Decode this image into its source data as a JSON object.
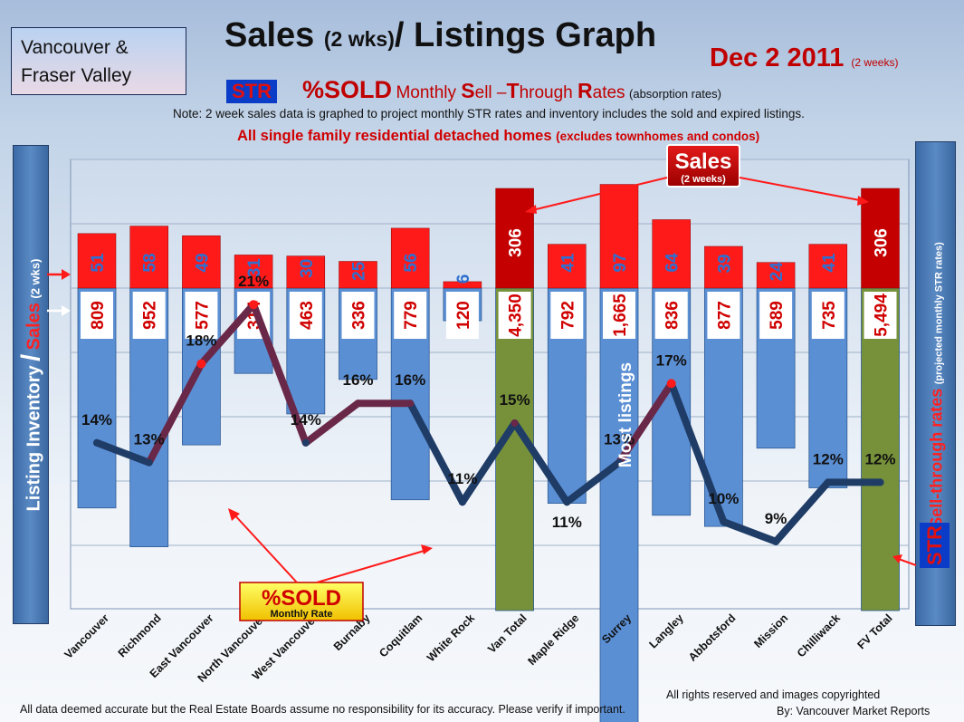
{
  "header": {
    "location": [
      "Vancouver &",
      "Fraser Valley"
    ],
    "title_main": "Sales",
    "title_small": "(2 wks)",
    "title_rest": "/ Listings Graph",
    "date": "Dec 2 2011",
    "date_sub": "(2 weeks)",
    "str_badge": "STR",
    "str_percent": "%SOLD",
    "str_monthly": "Monthly",
    "str_s": "S",
    "str_ell": "ell ",
    "str_dash": "–",
    "str_t": "T",
    "str_hrough": "hrough",
    "str_r": "R",
    "str_ates": "ates",
    "str_absorption": "(absorption  rates)",
    "note": "Note: 2 week sales data is graphed to project monthly STR rates and inventory includes the sold and expired listings.",
    "subhead_main": "All single family residential detached homes",
    "subhead_small": "(excludes townhomes and condos)"
  },
  "left_axis": {
    "part1": "Listing Inventory",
    "slash": "/",
    "part2": "Sales",
    "part3": "(2 wks)"
  },
  "right_axis": {
    "part1": "Sell-through rates",
    "part2": "(projected monthly STR rates)",
    "str": "STR"
  },
  "footer": {
    "disclaimer": "All data deemed accurate but the Real Estate Boards assume no responsibility for its accuracy.  Please verify if important.",
    "rights": "All rights reserved and  images copyrighted",
    "by": "By: Vancouver Market Reports"
  },
  "chart_data": {
    "type": "bar",
    "title": "Sales (2 wks)/ Listings Graph",
    "categories": [
      "Vancouver",
      "Richmond",
      "East Vancouver",
      "North Vancouver",
      "West Vancouver",
      "Burnaby",
      "Coquitlam",
      "White Rock",
      "Van Total",
      "Maple Ridge",
      "Surrey",
      "Langley",
      "Abbotsford",
      "Mission",
      "Chilliwack",
      "FV Total"
    ],
    "series": [
      {
        "name": "Listing Inventory",
        "values": [
          809,
          952,
          577,
          314,
          463,
          336,
          779,
          120,
          4350,
          792,
          1665,
          836,
          877,
          589,
          735,
          5494
        ],
        "labels": [
          "809",
          "952",
          "577",
          "314",
          "463",
          "336",
          "779",
          "120",
          "4,350",
          "792",
          "1,665",
          "836",
          "877",
          "589",
          "735",
          "5,494"
        ]
      },
      {
        "name": "Sales",
        "values": [
          51,
          58,
          49,
          31,
          30,
          25,
          56,
          6,
          306,
          41,
          97,
          64,
          39,
          24,
          41,
          306
        ],
        "labels": [
          "51",
          "58",
          "49",
          "31",
          "30",
          "25",
          "56",
          "6",
          "306",
          "41",
          "97",
          "64",
          "39",
          "24",
          "41",
          "306"
        ]
      },
      {
        "name": "%SOLD Monthly Rate",
        "values": [
          14,
          13,
          18,
          21,
          14,
          16,
          16,
          11,
          15,
          11,
          13,
          17,
          10,
          9,
          12,
          12
        ],
        "labels": [
          "14%",
          "13%",
          "18%",
          "21%",
          "14%",
          "16%",
          "16%",
          "11%",
          "15%",
          "11%",
          "13%",
          "17%",
          "10%",
          "9%",
          "12%",
          "12%"
        ]
      }
    ],
    "annotations": {
      "sales_callout": "Sales",
      "sales_callout_sub": "(2 weeks)",
      "most_listings": "Most listings",
      "sold_box": "%SOLD",
      "sold_box_sub": "Monthly Rate"
    },
    "colors": {
      "listings": "#5b8fd4",
      "totals": "#76913a",
      "sales": "#ff1a1a",
      "sales_totals": "#c40000",
      "line_low": "#1f3c66",
      "line_high": "#ff1a1a"
    }
  }
}
